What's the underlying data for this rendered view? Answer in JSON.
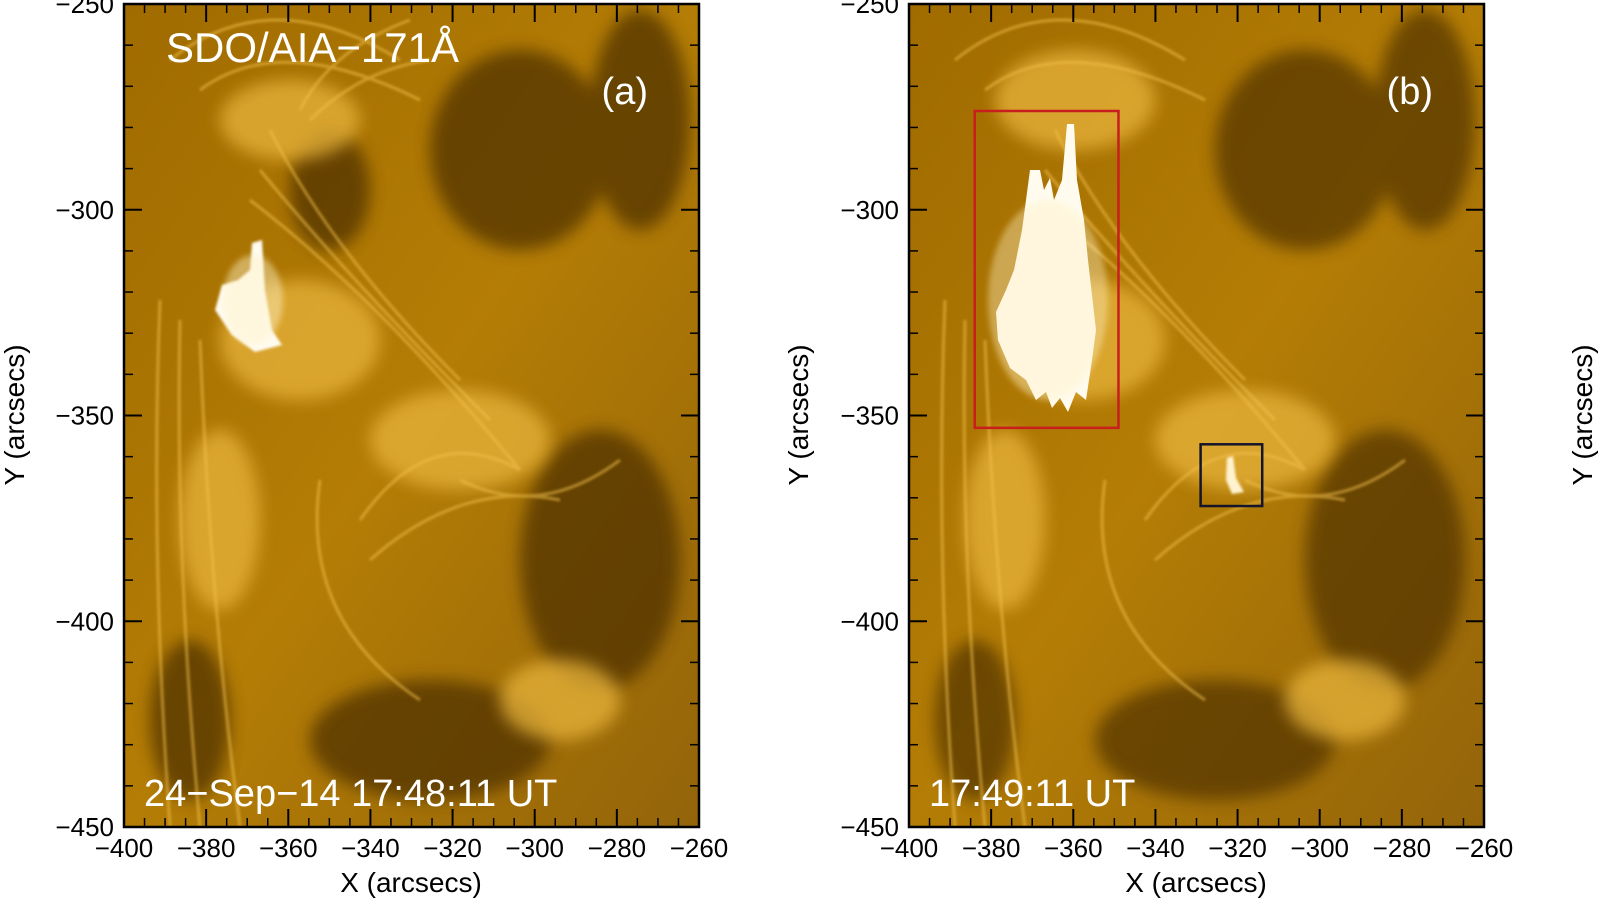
{
  "instrument": "SDO/AIA−171Å",
  "colors": {
    "base": "#a97300",
    "dark": "#4f3200",
    "mid": "#c58c0a",
    "bright": "#f1c04b",
    "flare": "#fffbef",
    "red_box": "#c81e1e",
    "black_box": "#14142b"
  },
  "panels": [
    {
      "id": "a",
      "label": "(a)",
      "timestamp": "24−Sep−14 17:48:11 UT",
      "xlabel": "X (arcsecs)",
      "ylabel": "Y (arcsecs)",
      "xlim": [
        -400,
        -260
      ],
      "ylim": [
        -450,
        -250
      ],
      "x_ticks": [
        "−400",
        "−380",
        "−360",
        "−340",
        "−320",
        "−300",
        "−280",
        "−260"
      ],
      "y_ticks": [
        "−450",
        "−400",
        "−350",
        "−300",
        "−250"
      ],
      "boxes": []
    },
    {
      "id": "b",
      "label": "(b)",
      "timestamp": "17:49:11 UT",
      "xlabel": "X (arcsecs)",
      "ylabel": "Y (arcsecs)",
      "xlim": [
        -400,
        -260
      ],
      "ylim": [
        -450,
        -250
      ],
      "x_ticks": [
        "−400",
        "−380",
        "−360",
        "−340",
        "−320",
        "−300",
        "−280",
        "−260"
      ],
      "y_ticks": [
        "−450",
        "−400",
        "−350",
        "−300",
        "−250"
      ],
      "boxes": [
        {
          "name": "red-region-box",
          "color": "red",
          "x0": -384,
          "x1": -349,
          "y0": -353,
          "y1": -276
        },
        {
          "name": "black-region-box",
          "color": "black",
          "x0": -329,
          "x1": -314,
          "y0": -372,
          "y1": -357
        }
      ]
    }
  ],
  "third_panel": {
    "ylabel": "Y (arcsecs)"
  }
}
